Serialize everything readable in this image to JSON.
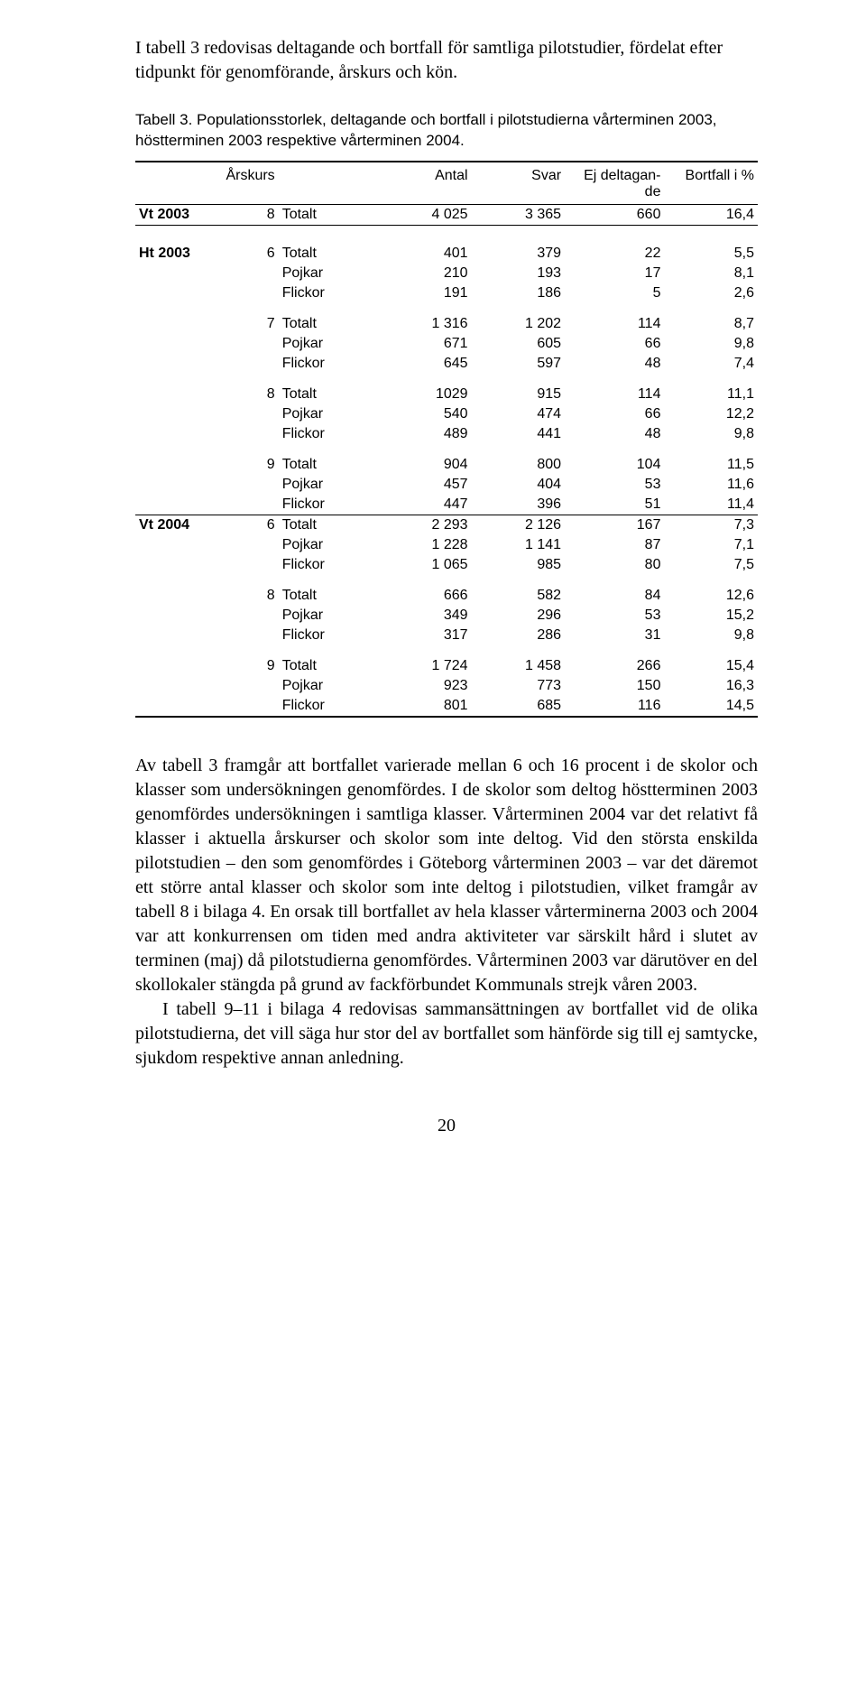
{
  "intro": "I tabell 3 redovisas deltagande och bortfall för samtliga pilotstudier, fördelat efter tidpunkt för genomförande, årskurs och kön.",
  "caption": "Tabell 3. Populationsstorlek, deltagande och bortfall i pilotstudierna vårterminen 2003, höstterminen 2003 respektive vårterminen 2004.",
  "headers": {
    "arskurs": "Årskurs",
    "antal": "Antal",
    "svar": "Svar",
    "ejdelt": "Ej deltagan-\nde",
    "bortfall": "Bortfall i %"
  },
  "rows": [
    {
      "term": "Vt 2003",
      "ars": "8",
      "grp": "Totalt",
      "antal": "4 025",
      "svar": "3 365",
      "ej": "660",
      "pct": "16,4",
      "cls": "rule-after"
    },
    {
      "term": "Ht 2003",
      "ars": "6",
      "grp": "Totalt",
      "antal": "401",
      "svar": "379",
      "ej": "22",
      "pct": "5,5",
      "cls": "block-gap"
    },
    {
      "term": "",
      "ars": "",
      "grp": "Pojkar",
      "antal": "210",
      "svar": "193",
      "ej": "17",
      "pct": "8,1"
    },
    {
      "term": "",
      "ars": "",
      "grp": "Flickor",
      "antal": "191",
      "svar": "186",
      "ej": "5",
      "pct": "2,6"
    },
    {
      "term": "",
      "ars": "7",
      "grp": "Totalt",
      "antal": "1 316",
      "svar": "1 202",
      "ej": "114",
      "pct": "8,7",
      "cls": "sub-gap"
    },
    {
      "term": "",
      "ars": "",
      "grp": "Pojkar",
      "antal": "671",
      "svar": "605",
      "ej": "66",
      "pct": "9,8"
    },
    {
      "term": "",
      "ars": "",
      "grp": "Flickor",
      "antal": "645",
      "svar": "597",
      "ej": "48",
      "pct": "7,4"
    },
    {
      "term": "",
      "ars": "8",
      "grp": "Totalt",
      "antal": "1029",
      "svar": "915",
      "ej": "114",
      "pct": "11,1",
      "cls": "sub-gap"
    },
    {
      "term": "",
      "ars": "",
      "grp": "Pojkar",
      "antal": "540",
      "svar": "474",
      "ej": "66",
      "pct": "12,2"
    },
    {
      "term": "",
      "ars": "",
      "grp": "Flickor",
      "antal": "489",
      "svar": "441",
      "ej": "48",
      "pct": "9,8"
    },
    {
      "term": "",
      "ars": "9",
      "grp": "Totalt",
      "antal": "904",
      "svar": "800",
      "ej": "104",
      "pct": "11,5",
      "cls": "sub-gap"
    },
    {
      "term": "",
      "ars": "",
      "grp": "Pojkar",
      "antal": "457",
      "svar": "404",
      "ej": "53",
      "pct": "11,6"
    },
    {
      "term": "",
      "ars": "",
      "grp": "Flickor",
      "antal": "447",
      "svar": "396",
      "ej": "51",
      "pct": "11,4",
      "cls": "rule-after"
    },
    {
      "term": "Vt 2004",
      "ars": "6",
      "grp": "Totalt",
      "antal": "2 293",
      "svar": "2 126",
      "ej": "167",
      "pct": "7,3"
    },
    {
      "term": "",
      "ars": "",
      "grp": "Pojkar",
      "antal": "1 228",
      "svar": "1 141",
      "ej": "87",
      "pct": "7,1"
    },
    {
      "term": "",
      "ars": "",
      "grp": "Flickor",
      "antal": "1 065",
      "svar": "985",
      "ej": "80",
      "pct": "7,5"
    },
    {
      "term": "",
      "ars": "8",
      "grp": "Totalt",
      "antal": "666",
      "svar": "582",
      "ej": "84",
      "pct": "12,6",
      "cls": "sub-gap"
    },
    {
      "term": "",
      "ars": "",
      "grp": "Pojkar",
      "antal": "349",
      "svar": "296",
      "ej": "53",
      "pct": "15,2"
    },
    {
      "term": "",
      "ars": "",
      "grp": "Flickor",
      "antal": "317",
      "svar": "286",
      "ej": "31",
      "pct": "9,8"
    },
    {
      "term": "",
      "ars": "9",
      "grp": "Totalt",
      "antal": "1 724",
      "svar": "1 458",
      "ej": "266",
      "pct": "15,4",
      "cls": "sub-gap"
    },
    {
      "term": "",
      "ars": "",
      "grp": "Pojkar",
      "antal": "923",
      "svar": "773",
      "ej": "150",
      "pct": "16,3"
    },
    {
      "term": "",
      "ars": "",
      "grp": "Flickor",
      "antal": "801",
      "svar": "685",
      "ej": "116",
      "pct": "14,5",
      "cls": "rule-thick"
    }
  ],
  "body_p1": "Av tabell 3 framgår att bortfallet varierade mellan 6 och 16 procent i de skolor och klasser som undersökningen genomfördes. I de skolor som deltog höstterminen 2003 genomfördes undersökningen i samtliga klasser. Vårterminen 2004 var det relativt få klasser i aktuella årskurser och skolor som inte deltog. Vid den största enskilda pilotstudien – den som genomfördes i Göteborg vårterminen 2003 – var det däremot ett större antal klasser och skolor som inte deltog i pilotstudien, vilket framgår av tabell 8 i bilaga 4. En orsak till bortfallet av hela klasser vårterminerna 2003 och 2004 var att konkurrensen om tiden med andra aktiviteter var särskilt hård i slutet av terminen (maj) då pilotstudierna genomfördes. Vårterminen 2003 var därutöver en del skollokaler stängda på grund av fackförbundet Kommunals strejk våren 2003.",
  "body_p2": "I tabell 9–11 i bilaga 4 redovisas sammansättningen av bortfallet vid de olika pilotstudierna, det vill säga hur stor del av bortfallet som hänförde sig till ej samtycke, sjukdom respektive annan anledning.",
  "pagenum": "20"
}
